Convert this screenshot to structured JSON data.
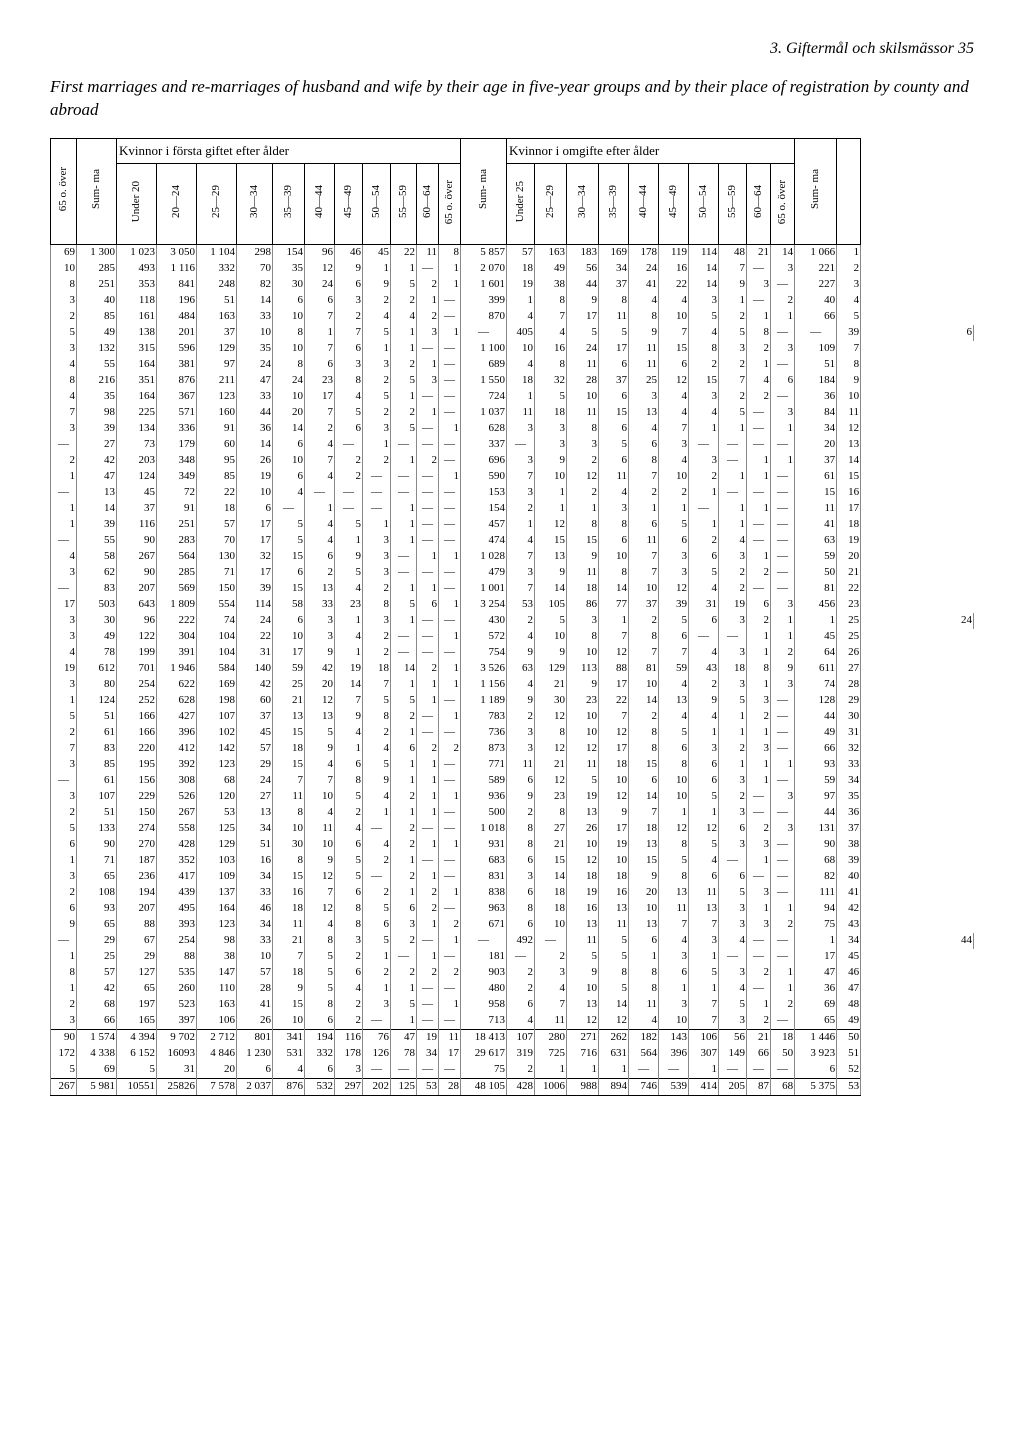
{
  "header_right": "3. Giftermål och skilsmässor   35",
  "caption": "First marriages and re-marriages of husband and wife by their age in five-year groups and by their place of registration by county and abroad",
  "super_left": "Kvinnor i första giftet efter ålder",
  "super_right": "Kvinnor i omgifte efter ålder",
  "cols_left_pre": [
    "65 o. över",
    "Sum- ma"
  ],
  "cols_left": [
    "Under 20",
    "20—24",
    "25—29",
    "30—34",
    "35—39",
    "40—44",
    "45—49",
    "50—54",
    "55—59",
    "60—64",
    "65 o. över"
  ],
  "cols_mid": [
    "Sum- ma"
  ],
  "cols_right": [
    "Under 25",
    "25—29",
    "30—34",
    "35—39",
    "40—44",
    "45—49",
    "50—54",
    "55—59",
    "60—64",
    "65 o. över"
  ],
  "cols_right_post": [
    "Sum- ma",
    ""
  ],
  "rows": [
    [
      "69",
      "1 300",
      "1 023",
      "3 050",
      "1 104",
      "298",
      "154",
      "96",
      "46",
      "45",
      "22",
      "11",
      "8",
      "5 857",
      "57",
      "163",
      "183",
      "169",
      "178",
      "119",
      "114",
      "48",
      "21",
      "14",
      "1 066",
      "1"
    ],
    [
      "10",
      "285",
      "493",
      "1 116",
      "332",
      "70",
      "35",
      "12",
      "9",
      "1",
      "1",
      "—",
      "1",
      "2 070",
      "18",
      "49",
      "56",
      "34",
      "24",
      "16",
      "14",
      "7",
      "—",
      "3",
      "221",
      "2"
    ],
    [
      "8",
      "251",
      "353",
      "841",
      "248",
      "82",
      "30",
      "24",
      "6",
      "9",
      "5",
      "2",
      "1",
      "1 601",
      "19",
      "38",
      "44",
      "37",
      "41",
      "22",
      "14",
      "9",
      "3",
      "—",
      "227",
      "3"
    ],
    [
      "3",
      "40",
      "118",
      "196",
      "51",
      "14",
      "6",
      "6",
      "3",
      "2",
      "2",
      "1",
      "—",
      "399",
      "1",
      "8",
      "9",
      "8",
      "4",
      "4",
      "3",
      "1",
      "—",
      "2",
      "40",
      "4"
    ],
    [
      "2",
      "85",
      "161",
      "484",
      "163",
      "33",
      "10",
      "7",
      "2",
      "4",
      "4",
      "2",
      "—",
      "870",
      "4",
      "7",
      "17",
      "11",
      "8",
      "10",
      "5",
      "2",
      "1",
      "1",
      "66",
      "5"
    ],
    [
      "5",
      "49",
      "138",
      "201",
      "37",
      "10",
      "8",
      "1",
      "7",
      "5",
      "1",
      "3",
      "1",
      "—",
      "405",
      "4",
      "5",
      "5",
      "9",
      "7",
      "4",
      "5",
      "8",
      "—",
      "—",
      "39",
      "6"
    ],
    [
      "3",
      "132",
      "315",
      "596",
      "129",
      "35",
      "10",
      "7",
      "6",
      "1",
      "1",
      "—",
      "—",
      "1 100",
      "10",
      "16",
      "24",
      "17",
      "11",
      "15",
      "8",
      "3",
      "2",
      "3",
      "109",
      "7"
    ],
    [
      "4",
      "55",
      "164",
      "381",
      "97",
      "24",
      "8",
      "6",
      "3",
      "3",
      "2",
      "1",
      "—",
      "689",
      "4",
      "8",
      "11",
      "6",
      "11",
      "6",
      "2",
      "2",
      "1",
      "—",
      "51",
      "8"
    ],
    [
      "8",
      "216",
      "351",
      "876",
      "211",
      "47",
      "24",
      "23",
      "8",
      "2",
      "5",
      "3",
      "—",
      "1 550",
      "18",
      "32",
      "28",
      "37",
      "25",
      "12",
      "15",
      "7",
      "4",
      "6",
      "184",
      "9"
    ],
    [
      "4",
      "35",
      "164",
      "367",
      "123",
      "33",
      "10",
      "17",
      "4",
      "5",
      "1",
      "—",
      "—",
      "724",
      "1",
      "5",
      "10",
      "6",
      "3",
      "4",
      "3",
      "2",
      "2",
      "—",
      "36",
      "10"
    ],
    [
      "7",
      "98",
      "225",
      "571",
      "160",
      "44",
      "20",
      "7",
      "5",
      "2",
      "2",
      "1",
      "—",
      "1 037",
      "11",
      "18",
      "11",
      "15",
      "13",
      "4",
      "4",
      "5",
      "—",
      "3",
      "84",
      "11"
    ],
    [
      "3",
      "39",
      "134",
      "336",
      "91",
      "36",
      "14",
      "2",
      "6",
      "3",
      "5",
      "—",
      "1",
      "628",
      "3",
      "3",
      "8",
      "6",
      "4",
      "7",
      "1",
      "1",
      "—",
      "1",
      "34",
      "12"
    ],
    [
      "—",
      "27",
      "73",
      "179",
      "60",
      "14",
      "6",
      "4",
      "—",
      "1",
      "—",
      "—",
      "—",
      "337",
      "—",
      "3",
      "3",
      "5",
      "6",
      "3",
      "—",
      "—",
      "—",
      "—",
      "20",
      "13"
    ],
    [
      "2",
      "42",
      "203",
      "348",
      "95",
      "26",
      "10",
      "7",
      "2",
      "2",
      "1",
      "2",
      "—",
      "696",
      "3",
      "9",
      "2",
      "6",
      "8",
      "4",
      "3",
      "—",
      "1",
      "1",
      "37",
      "14"
    ],
    [
      "1",
      "47",
      "124",
      "349",
      "85",
      "19",
      "6",
      "4",
      "2",
      "—",
      "—",
      "—",
      "1",
      "590",
      "7",
      "10",
      "12",
      "11",
      "7",
      "10",
      "2",
      "1",
      "1",
      "—",
      "61",
      "15"
    ],
    [
      "—",
      "13",
      "45",
      "72",
      "22",
      "10",
      "4",
      "—",
      "—",
      "—",
      "—",
      "—",
      "—",
      "153",
      "3",
      "1",
      "2",
      "4",
      "2",
      "2",
      "1",
      "—",
      "—",
      "—",
      "15",
      "16"
    ],
    [
      "1",
      "14",
      "37",
      "91",
      "18",
      "6",
      "—",
      "1",
      "—",
      "—",
      "1",
      "—",
      "—",
      "154",
      "2",
      "1",
      "1",
      "3",
      "1",
      "1",
      "—",
      "1",
      "1",
      "—",
      "11",
      "17"
    ],
    [
      "1",
      "39",
      "116",
      "251",
      "57",
      "17",
      "5",
      "4",
      "5",
      "1",
      "1",
      "—",
      "—",
      "457",
      "1",
      "12",
      "8",
      "8",
      "6",
      "5",
      "1",
      "1",
      "—",
      "—",
      "41",
      "18"
    ],
    [
      "—",
      "55",
      "90",
      "283",
      "70",
      "17",
      "5",
      "4",
      "1",
      "3",
      "1",
      "—",
      "—",
      "474",
      "4",
      "15",
      "15",
      "6",
      "11",
      "6",
      "2",
      "4",
      "—",
      "—",
      "63",
      "19"
    ],
    [
      "4",
      "58",
      "267",
      "564",
      "130",
      "32",
      "15",
      "6",
      "9",
      "3",
      "—",
      "1",
      "1",
      "1 028",
      "7",
      "13",
      "9",
      "10",
      "7",
      "3",
      "6",
      "3",
      "1",
      "—",
      "59",
      "20"
    ],
    [
      "3",
      "62",
      "90",
      "285",
      "71",
      "17",
      "6",
      "2",
      "5",
      "3",
      "—",
      "—",
      "—",
      "479",
      "3",
      "9",
      "11",
      "8",
      "7",
      "3",
      "5",
      "2",
      "2",
      "—",
      "50",
      "21"
    ],
    [
      "—",
      "83",
      "207",
      "569",
      "150",
      "39",
      "15",
      "13",
      "4",
      "2",
      "1",
      "1",
      "—",
      "1 001",
      "7",
      "14",
      "18",
      "14",
      "10",
      "12",
      "4",
      "2",
      "—",
      "—",
      "81",
      "22"
    ],
    [
      "17",
      "503",
      "643",
      "1 809",
      "554",
      "114",
      "58",
      "33",
      "23",
      "8",
      "5",
      "6",
      "1",
      "3 254",
      "53",
      "105",
      "86",
      "77",
      "37",
      "39",
      "31",
      "19",
      "6",
      "3",
      "456",
      "23"
    ],
    [
      "3",
      "30",
      "96",
      "222",
      "74",
      "24",
      "6",
      "3",
      "1",
      "3",
      "1",
      "—",
      "—",
      "430",
      "2",
      "5",
      "3",
      "1",
      "2",
      "5",
      "6",
      "3",
      "2",
      "1",
      "1",
      "25",
      "24"
    ],
    [
      "3",
      "49",
      "122",
      "304",
      "104",
      "22",
      "10",
      "3",
      "4",
      "2",
      "—",
      "—",
      "1",
      "572",
      "4",
      "10",
      "8",
      "7",
      "8",
      "6",
      "—",
      "—",
      "1",
      "1",
      "45",
      "25"
    ],
    [
      "4",
      "78",
      "199",
      "391",
      "104",
      "31",
      "17",
      "9",
      "1",
      "2",
      "—",
      "—",
      "—",
      "754",
      "9",
      "9",
      "10",
      "12",
      "7",
      "7",
      "4",
      "3",
      "1",
      "2",
      "64",
      "26"
    ],
    [
      "19",
      "612",
      "701",
      "1 946",
      "584",
      "140",
      "59",
      "42",
      "19",
      "18",
      "14",
      "2",
      "1",
      "3 526",
      "63",
      "129",
      "113",
      "88",
      "81",
      "59",
      "43",
      "18",
      "8",
      "9",
      "611",
      "27"
    ],
    [
      "3",
      "80",
      "254",
      "622",
      "169",
      "42",
      "25",
      "20",
      "14",
      "7",
      "1",
      "1",
      "1",
      "1 156",
      "4",
      "21",
      "9",
      "17",
      "10",
      "4",
      "2",
      "3",
      "1",
      "3",
      "74",
      "28"
    ],
    [
      "1",
      "124",
      "252",
      "628",
      "198",
      "60",
      "21",
      "12",
      "7",
      "5",
      "5",
      "1",
      "—",
      "1 189",
      "9",
      "30",
      "23",
      "22",
      "14",
      "13",
      "9",
      "5",
      "3",
      "—",
      "128",
      "29"
    ],
    [
      "5",
      "51",
      "166",
      "427",
      "107",
      "37",
      "13",
      "13",
      "9",
      "8",
      "2",
      "—",
      "1",
      "783",
      "2",
      "12",
      "10",
      "7",
      "2",
      "4",
      "4",
      "1",
      "2",
      "—",
      "44",
      "30"
    ],
    [
      "2",
      "61",
      "166",
      "396",
      "102",
      "45",
      "15",
      "5",
      "4",
      "2",
      "1",
      "—",
      "—",
      "736",
      "3",
      "8",
      "10",
      "12",
      "8",
      "5",
      "1",
      "1",
      "1",
      "—",
      "49",
      "31"
    ],
    [
      "7",
      "83",
      "220",
      "412",
      "142",
      "57",
      "18",
      "9",
      "1",
      "4",
      "6",
      "2",
      "2",
      "873",
      "3",
      "12",
      "12",
      "17",
      "8",
      "6",
      "3",
      "2",
      "3",
      "—",
      "66",
      "32"
    ],
    [
      "3",
      "85",
      "195",
      "392",
      "123",
      "29",
      "15",
      "4",
      "6",
      "5",
      "1",
      "1",
      "—",
      "771",
      "11",
      "21",
      "11",
      "18",
      "15",
      "8",
      "6",
      "1",
      "1",
      "1",
      "93",
      "33"
    ],
    [
      "—",
      "61",
      "156",
      "308",
      "68",
      "24",
      "7",
      "7",
      "8",
      "9",
      "1",
      "1",
      "—",
      "589",
      "6",
      "12",
      "5",
      "10",
      "6",
      "10",
      "6",
      "3",
      "1",
      "—",
      "59",
      "34"
    ],
    [
      "3",
      "107",
      "229",
      "526",
      "120",
      "27",
      "11",
      "10",
      "5",
      "4",
      "2",
      "1",
      "1",
      "936",
      "9",
      "23",
      "19",
      "12",
      "14",
      "10",
      "5",
      "2",
      "—",
      "3",
      "97",
      "35"
    ],
    [
      "2",
      "51",
      "150",
      "267",
      "53",
      "13",
      "8",
      "4",
      "2",
      "1",
      "1",
      "1",
      "—",
      "500",
      "2",
      "8",
      "13",
      "9",
      "7",
      "1",
      "1",
      "3",
      "—",
      "—",
      "44",
      "36"
    ],
    [
      "5",
      "133",
      "274",
      "558",
      "125",
      "34",
      "10",
      "11",
      "4",
      "—",
      "2",
      "—",
      "—",
      "1 018",
      "8",
      "27",
      "26",
      "17",
      "18",
      "12",
      "12",
      "6",
      "2",
      "3",
      "131",
      "37"
    ],
    [
      "6",
      "90",
      "270",
      "428",
      "129",
      "51",
      "30",
      "10",
      "6",
      "4",
      "2",
      "1",
      "1",
      "931",
      "8",
      "21",
      "10",
      "19",
      "13",
      "8",
      "5",
      "3",
      "3",
      "—",
      "90",
      "38"
    ],
    [
      "1",
      "71",
      "187",
      "352",
      "103",
      "16",
      "8",
      "9",
      "5",
      "2",
      "1",
      "—",
      "—",
      "683",
      "6",
      "15",
      "12",
      "10",
      "15",
      "5",
      "4",
      "—",
      "1",
      "—",
      "68",
      "39"
    ],
    [
      "3",
      "65",
      "236",
      "417",
      "109",
      "34",
      "15",
      "12",
      "5",
      "—",
      "2",
      "1",
      "—",
      "831",
      "3",
      "14",
      "18",
      "18",
      "9",
      "8",
      "6",
      "6",
      "—",
      "—",
      "82",
      "40"
    ],
    [
      "2",
      "108",
      "194",
      "439",
      "137",
      "33",
      "16",
      "7",
      "6",
      "2",
      "1",
      "2",
      "1",
      "838",
      "6",
      "18",
      "19",
      "16",
      "20",
      "13",
      "11",
      "5",
      "3",
      "—",
      "111",
      "41"
    ],
    [
      "6",
      "93",
      "207",
      "495",
      "164",
      "46",
      "18",
      "12",
      "8",
      "5",
      "6",
      "2",
      "—",
      "963",
      "8",
      "18",
      "16",
      "13",
      "10",
      "11",
      "13",
      "3",
      "1",
      "1",
      "94",
      "42"
    ],
    [
      "9",
      "65",
      "88",
      "393",
      "123",
      "34",
      "11",
      "4",
      "8",
      "6",
      "3",
      "1",
      "2",
      "671",
      "6",
      "10",
      "13",
      "11",
      "13",
      "7",
      "7",
      "3",
      "3",
      "2",
      "75",
      "43"
    ],
    [
      "—",
      "29",
      "67",
      "254",
      "98",
      "33",
      "21",
      "8",
      "3",
      "5",
      "2",
      "—",
      "1",
      "—",
      "492",
      "—",
      "11",
      "5",
      "6",
      "4",
      "3",
      "4",
      "—",
      "—",
      "1",
      "34",
      "44"
    ],
    [
      "1",
      "25",
      "29",
      "88",
      "38",
      "10",
      "7",
      "5",
      "2",
      "1",
      "—",
      "1",
      "—",
      "181",
      "—",
      "2",
      "5",
      "5",
      "1",
      "3",
      "1",
      "—",
      "—",
      "—",
      "17",
      "45"
    ],
    [
      "8",
      "57",
      "127",
      "535",
      "147",
      "57",
      "18",
      "5",
      "6",
      "2",
      "2",
      "2",
      "2",
      "903",
      "2",
      "3",
      "9",
      "8",
      "8",
      "6",
      "5",
      "3",
      "2",
      "1",
      "47",
      "46"
    ],
    [
      "1",
      "42",
      "65",
      "260",
      "110",
      "28",
      "9",
      "5",
      "4",
      "1",
      "1",
      "—",
      "—",
      "480",
      "2",
      "4",
      "10",
      "5",
      "8",
      "1",
      "1",
      "4",
      "—",
      "1",
      "36",
      "47"
    ],
    [
      "2",
      "68",
      "197",
      "523",
      "163",
      "41",
      "15",
      "8",
      "2",
      "3",
      "5",
      "—",
      "1",
      "958",
      "6",
      "7",
      "13",
      "14",
      "11",
      "3",
      "7",
      "5",
      "1",
      "2",
      "69",
      "48"
    ],
    [
      "3",
      "66",
      "165",
      "397",
      "106",
      "26",
      "10",
      "6",
      "2",
      "—",
      "1",
      "—",
      "—",
      "713",
      "4",
      "11",
      "12",
      "12",
      "4",
      "10",
      "7",
      "3",
      "2",
      "—",
      "65",
      "49"
    ]
  ],
  "bottom": [
    [
      "90",
      "1 574",
      "4 394",
      "9 702",
      "2 712",
      "801",
      "341",
      "194",
      "116",
      "76",
      "47",
      "19",
      "11",
      "18 413",
      "107",
      "280",
      "271",
      "262",
      "182",
      "143",
      "106",
      "56",
      "21",
      "18",
      "1 446",
      "50"
    ],
    [
      "172",
      "4 338",
      "6 152",
      "16093",
      "4 846",
      "1 230",
      "531",
      "332",
      "178",
      "126",
      "78",
      "34",
      "17",
      "29 617",
      "319",
      "725",
      "716",
      "631",
      "564",
      "396",
      "307",
      "149",
      "66",
      "50",
      "3 923",
      "51"
    ],
    [
      "5",
      "69",
      "5",
      "31",
      "20",
      "6",
      "4",
      "6",
      "3",
      "—",
      "—",
      "—",
      "—",
      "75",
      "2",
      "1",
      "1",
      "1",
      "—",
      "—",
      "1",
      "—",
      "—",
      "—",
      "6",
      "52"
    ],
    [
      "267",
      "5 981",
      "10551",
      "25826",
      "7 578",
      "2 037",
      "876",
      "532",
      "297",
      "202",
      "125",
      "53",
      "28",
      "48 105",
      "428",
      "1006",
      "988",
      "894",
      "746",
      "539",
      "414",
      "205",
      "87",
      "68",
      "5 375",
      "53"
    ]
  ]
}
